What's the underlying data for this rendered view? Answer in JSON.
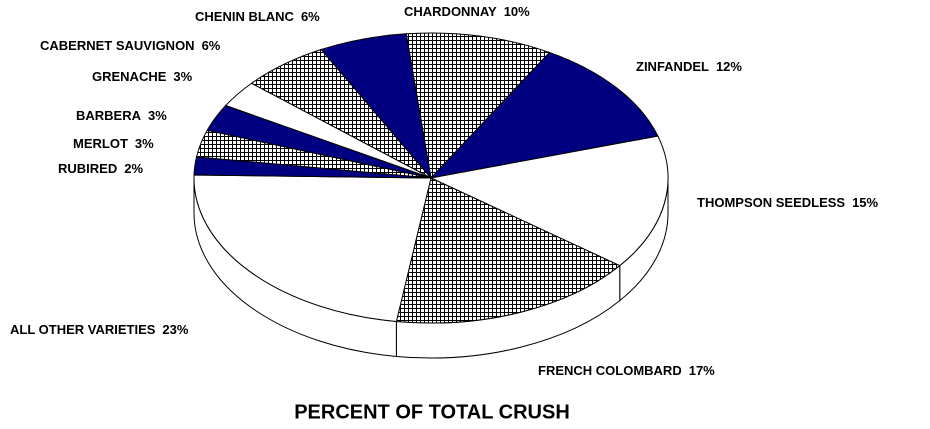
{
  "chart_data": {
    "type": "pie3d",
    "title": "PERCENT OF TOTAL CRUSH",
    "categories": [
      "CHARDONNAY",
      "ZINFANDEL",
      "THOMPSON SEEDLESS",
      "FRENCH COLOMBARD",
      "ALL OTHER VARIETIES",
      "RUBIRED",
      "MERLOT",
      "BARBERA",
      "GRENACHE",
      "CABERNET SAUVIGNON",
      "CHENIN BLANC"
    ],
    "values": [
      10,
      12,
      15,
      17,
      23,
      2,
      3,
      3,
      3,
      6,
      6
    ],
    "value_labels": [
      "10%",
      "12%",
      "15%",
      "17%",
      "23%",
      "2%",
      "3%",
      "3%",
      "3%",
      "6%",
      "6%"
    ],
    "fills": [
      "crosshatch",
      "#000080",
      "#ffffff",
      "crosshatch",
      "#ffffff",
      "#000080",
      "crosshatch",
      "#000080",
      "#ffffff",
      "crosshatch",
      "#000080"
    ]
  }
}
